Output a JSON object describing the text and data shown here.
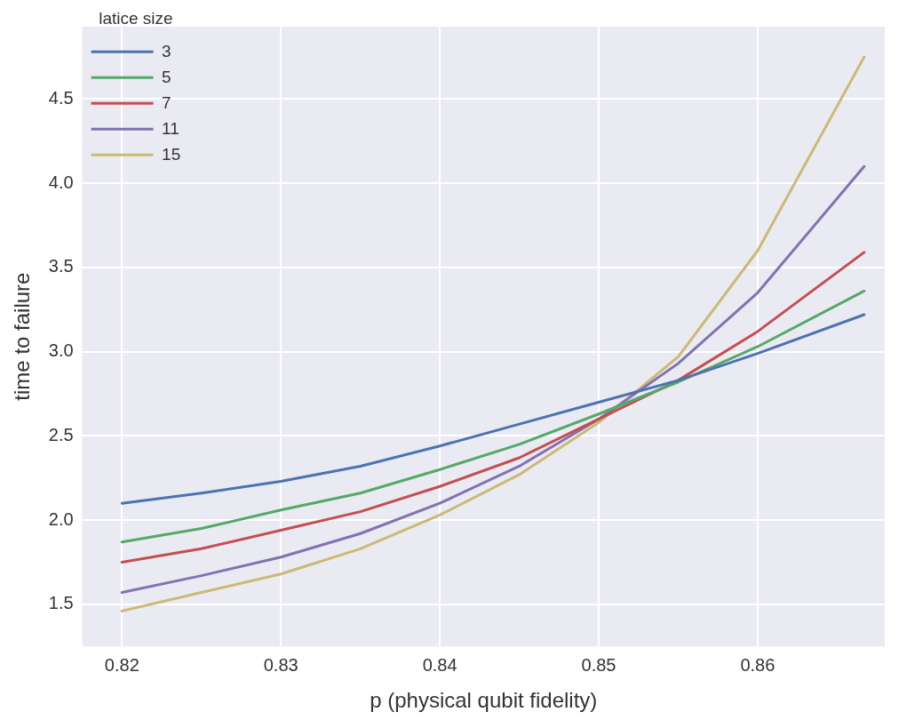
{
  "chart_data": {
    "type": "line",
    "xlabel": "p (physical qubit fidelity)",
    "ylabel": "time to failure",
    "legend_title": "latice size",
    "x": [
      0.82,
      0.825,
      0.83,
      0.835,
      0.84,
      0.845,
      0.85,
      0.855,
      0.86,
      0.8667
    ],
    "series": [
      {
        "name": "3",
        "color": "#4c72b0",
        "values": [
          2.1,
          2.16,
          2.23,
          2.32,
          2.44,
          2.57,
          2.7,
          2.83,
          2.99,
          3.22
        ]
      },
      {
        "name": "5",
        "color": "#55a868",
        "values": [
          1.87,
          1.95,
          2.06,
          2.16,
          2.3,
          2.45,
          2.63,
          2.82,
          3.03,
          3.36
        ]
      },
      {
        "name": "7",
        "color": "#c44e52",
        "values": [
          1.75,
          1.83,
          1.94,
          2.05,
          2.2,
          2.37,
          2.6,
          2.83,
          3.12,
          3.59
        ]
      },
      {
        "name": "11",
        "color": "#8172b2",
        "values": [
          1.57,
          1.67,
          1.78,
          1.92,
          2.1,
          2.32,
          2.6,
          2.93,
          3.35,
          4.1
        ]
      },
      {
        "name": "15",
        "color": "#ccb974",
        "values": [
          1.46,
          1.57,
          1.68,
          1.83,
          2.03,
          2.27,
          2.58,
          2.97,
          3.6,
          4.75
        ]
      }
    ],
    "xlim": [
      0.8175,
      0.868
    ],
    "xticks": [
      0.82,
      0.83,
      0.84,
      0.85,
      0.86
    ],
    "ylim": [
      1.25,
      4.93
    ],
    "yticks": [
      1.5,
      {
        "value": 2,
        "label": "2.0"
      },
      2.5,
      {
        "value": 3,
        "label": "3.0"
      },
      3.5,
      {
        "value": 4,
        "label": "4.0"
      },
      4.5
    ],
    "grid": true,
    "legend": "top left",
    "marker": "none",
    "line_style": "solid"
  }
}
